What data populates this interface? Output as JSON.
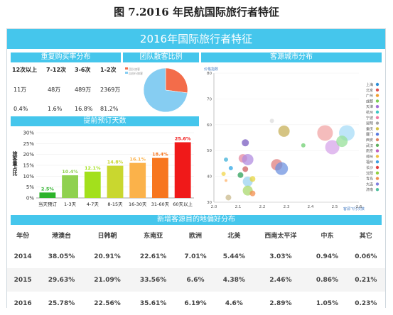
{
  "figure_title": "图 7.2016 年民航国际旅行者特征",
  "banner_title": "2016年国际旅行者特征",
  "repeat": {
    "header": "重复购买率分布",
    "columns": [
      "12次以上",
      "7-12次",
      "3-6次",
      "1-2次"
    ],
    "counts": [
      "11万",
      "48万",
      "489万",
      "2369万"
    ],
    "shares": [
      "0.4%",
      "1.6%",
      "16.8%",
      "81.2%"
    ]
  },
  "group": {
    "header": "团队散客比例",
    "legend": [
      "团队旅客",
      "自由行旅客"
    ],
    "slices": [
      {
        "name": "团队旅客",
        "value": 27,
        "color": "#f36c4a"
      },
      {
        "name": "自由行旅客",
        "value": 73,
        "color": "#86cdf2"
      }
    ]
  },
  "advance": {
    "header": "提前预订天数",
    "ylabel": "旅客量占比",
    "chart_data": {
      "type": "bar",
      "categories": [
        "当天预订",
        "1-3天",
        "4-7天",
        "8-15天",
        "16-30天",
        "31-60天",
        "60天以上"
      ],
      "values": [
        2.5,
        10.4,
        12.1,
        14.8,
        16.1,
        18.4,
        25.6
      ],
      "labels": [
        "2.5%",
        "10.4%",
        "12.1%",
        "14.8%",
        "16.1%",
        "18.4%",
        "25.6%"
      ],
      "colors": [
        "#2db32b",
        "#8fd14f",
        "#a3e01c",
        "#c9d72f",
        "#fbb24a",
        "#f7761f",
        "#f01919"
      ],
      "yticks": [
        "0%",
        "5%",
        "10%",
        "15%",
        "20%",
        "25%",
        "30%"
      ],
      "ylim": [
        0,
        30
      ]
    }
  },
  "source": {
    "header": "客源城市分布",
    "ylabel": "价格指数",
    "xlabel": "客源飞行次数",
    "chart_data": {
      "type": "scatter",
      "xlim": [
        2.0,
        2.6
      ],
      "ylim": [
        30,
        80
      ],
      "xticks": [
        "2.0",
        "2.1",
        "2.2",
        "2.3",
        "2.4",
        "2.5",
        "2.6"
      ],
      "yticks": [
        "30",
        "40",
        "50",
        "60",
        "70",
        "80"
      ],
      "points": [
        {
          "x": 2.29,
          "y": 57.5,
          "r": 8,
          "color": "#c7b05a"
        },
        {
          "x": 2.13,
          "y": 53,
          "r": 5,
          "color": "#7a5cc0"
        },
        {
          "x": 2.37,
          "y": 52,
          "r": 3,
          "color": "#6fcf72"
        },
        {
          "x": 2.05,
          "y": 46.5,
          "r": 3,
          "color": "#3fb0d8"
        },
        {
          "x": 2.12,
          "y": 47,
          "r": 6,
          "color": "#e68aa0"
        },
        {
          "x": 2.14,
          "y": 46.5,
          "r": 8,
          "color": "#b18de0"
        },
        {
          "x": 2.26,
          "y": 44.5,
          "r": 8,
          "color": "#e07f7f"
        },
        {
          "x": 2.13,
          "y": 42.8,
          "r": 4,
          "color": "#d06060"
        },
        {
          "x": 2.07,
          "y": 43.2,
          "r": 3,
          "color": "#2fa7e6"
        },
        {
          "x": 2.04,
          "y": 41,
          "r": 3,
          "color": "#f2d64a"
        },
        {
          "x": 2.28,
          "y": 43,
          "r": 9,
          "color": "#6f93e0"
        },
        {
          "x": 2.11,
          "y": 40.5,
          "r": 4,
          "color": "#2ca05a"
        },
        {
          "x": 2.14,
          "y": 38,
          "r": 7,
          "color": "#9bd3f0"
        },
        {
          "x": 2.16,
          "y": 39,
          "r": 4,
          "color": "#e7d43e"
        },
        {
          "x": 2.05,
          "y": 38.4,
          "r": 2,
          "color": "#ffb36b"
        },
        {
          "x": 2.14,
          "y": 34.5,
          "r": 7,
          "color": "#a9d86e"
        },
        {
          "x": 2.16,
          "y": 33.4,
          "r": 4,
          "color": "#f48e4e"
        },
        {
          "x": 2.06,
          "y": 31.8,
          "r": 4,
          "color": "#c9b98c"
        },
        {
          "x": 2.46,
          "y": 56.8,
          "r": 11,
          "color": "#f2a5a5"
        },
        {
          "x": 2.55,
          "y": 56.8,
          "r": 11,
          "color": "#a8dcf7"
        },
        {
          "x": 2.49,
          "y": 51.3,
          "r": 10,
          "color": "#d7a6ea"
        },
        {
          "x": 2.53,
          "y": 53.6,
          "r": 8,
          "color": "#97e09a"
        },
        {
          "x": 2.24,
          "y": 61.5,
          "r": 3,
          "color": "#dcdcdc"
        }
      ],
      "legend": [
        {
          "name": "上海",
          "color": "#2f8fd8"
        },
        {
          "name": "北京",
          "color": "#e05050"
        },
        {
          "name": "广州",
          "color": "#f0a030"
        },
        {
          "name": "成都",
          "color": "#7acc55"
        },
        {
          "name": "天津",
          "color": "#a16fd8"
        },
        {
          "name": "杭州",
          "color": "#3fc6c6"
        },
        {
          "name": "宁波",
          "color": "#f07aa0"
        },
        {
          "name": "昆明",
          "color": "#a5a5a5"
        },
        {
          "name": "重庆",
          "color": "#d4c240"
        },
        {
          "name": "厦门",
          "color": "#5a7ae0"
        },
        {
          "name": "西安",
          "color": "#e08060"
        },
        {
          "name": "武汉",
          "color": "#60b060"
        },
        {
          "name": "南京",
          "color": "#c060c0"
        },
        {
          "name": "郑州",
          "color": "#f0c040"
        },
        {
          "name": "福州",
          "color": "#40a0e0"
        },
        {
          "name": "长沙",
          "color": "#e04040"
        },
        {
          "name": "沈阳",
          "color": "#90d040"
        },
        {
          "name": "青岛",
          "color": "#f09050"
        },
        {
          "name": "大连",
          "color": "#8080e0"
        },
        {
          "name": "济南",
          "color": "#50c0a0"
        }
      ]
    }
  },
  "destinations": {
    "header": "新增客源目的地偏好分布",
    "columns": [
      "年份",
      "港澳台",
      "日韩朝",
      "东南亚",
      "欧洲",
      "北美",
      "西南太平洋",
      "中东",
      "其它"
    ],
    "rows": [
      [
        "2014",
        "38.05%",
        "20.91%",
        "22.61%",
        "7.01%",
        "5.44%",
        "3.03%",
        "0.94%",
        "0.06%"
      ],
      [
        "2015",
        "29.63%",
        "21.09%",
        "33.56%",
        "6.6%",
        "4.38%",
        "2.46%",
        "0.86%",
        "0.21%"
      ],
      [
        "2016",
        "25.78%",
        "22.56%",
        "35.61%",
        "6.19%",
        "4.6%",
        "2.89%",
        "1.05%",
        "0.23%"
      ]
    ]
  }
}
